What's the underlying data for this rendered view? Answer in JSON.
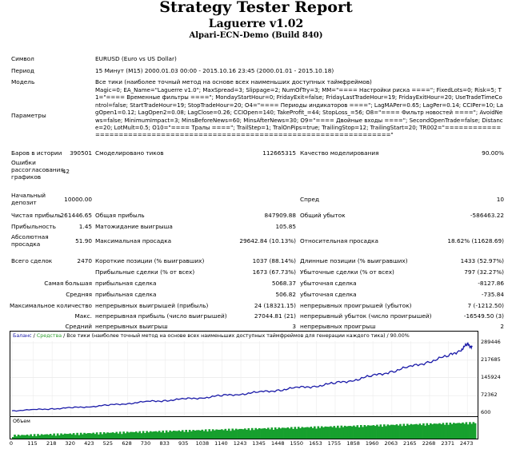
{
  "header": {
    "title": "Strategy Tester Report",
    "ea_name": "Laguerre v1.02",
    "server": "Alpari-ECN-Demo (Build 840)"
  },
  "info": {
    "symbol_label": "Символ",
    "symbol_value": "EURUSD (Euro vs US Dollar)",
    "period_label": "Период",
    "period_value": "15 Минут (M15) 2000.01.03 00:00 - 2015.10.16 23:45 (2000.01.01 - 2015.10.18)",
    "model_label": "Модель",
    "model_value": "Все тики (наиболее точный метод на основе всех наименьших доступных таймфреймов)",
    "params_label": "Параметры",
    "params_value": "Magic=0; EA_Name=\"Laguerre v1.0\"; MaxSpread=3; Slippage=2; NumOfTry=3; MM=\"==== Настройки риска ====\"; FixedLots=0; Risk=5; T1=\"==== Временные фильтры ====\"; MondayStartHour=0; FridayExit=false; FridayLastTradeHour=19; FridayExitHour=20; UseTradeTimeControl=false; StartTradeHour=19; StopTradeHour=20; O4=\"==== Периоды индикаторов ====\"; LagMAPer=0.65; LagPer=0.14; CCIPer=10; LagOpen1=0.12; LagOpen2=0.08; LagClose=0.26; CCIOpen=140; TakeProfit_=44; StopLoss_=56; O8=\"==== Фильтр новостей ====\"; AvoidNews=false; MinimumImpact=3; MinsBeforeNews=60; MinsAfterNews=30; O9=\"==== Двойные входы ====\"; SecondOpenTrade=false; Distance=20; LotMult=0.5; O10=\"==== Тралы ====\"; TrailStep=1; TralOnPips=true; TrailingStop=12; TrailingStart=20; TR002=\"===========================================================================\""
  },
  "stats": {
    "bars_label": "Баров в истории",
    "bars_value": "390501",
    "ticks_label": "Смоделировано тиков",
    "ticks_value": "112665315",
    "quality_label": "Качество моделирования",
    "quality_value": "90.00%",
    "errors_label": "Ошибки рассогласования графиков",
    "errors_value": "42",
    "deposit_label": "Начальный депозит",
    "deposit_value": "10000.00",
    "spread_label": "Спред",
    "spread_value": "10",
    "net_label": "Чистая прибыль",
    "net_value": "261446.65",
    "gross_profit_label": "Общая прибыль",
    "gross_profit_value": "847909.88",
    "gross_loss_label": "Общий убыток",
    "gross_loss_value": "-586463.22",
    "pf_label": "Прибыльность",
    "pf_value": "1.45",
    "exp_label": "Матожидание выигрыша",
    "exp_value": "105.85",
    "abs_dd_label": "Абсолютная просадка",
    "abs_dd_value": "51.90",
    "max_dd_label": "Максимальная просадка",
    "max_dd_value": "29642.84 (10.13%)",
    "rel_dd_label": "Относительная просадка",
    "rel_dd_value": "18.62% (11628.69)",
    "total_label": "Всего сделок",
    "total_value": "2470",
    "short_label": "Короткие позиции (% выигравших)",
    "short_value": "1037 (88.14%)",
    "long_label": "Длинные позиции (% выигравших)",
    "long_value": "1433 (52.97%)",
    "profit_trades_label": "Прибыльные сделки (% от всех)",
    "profit_trades_value": "1673 (67.73%)",
    "loss_trades_label": "Убыточные сделки (% от всех)",
    "loss_trades_value": "797 (32.27%)",
    "largest_label": "Самая большая",
    "largest_profit_label": "прибыльная сделка",
    "largest_profit_value": "5068.37",
    "largest_loss_label": "убыточная сделка",
    "largest_loss_value": "-8127.86",
    "average_label": "Средняя",
    "avg_profit_label": "прибыльная сделка",
    "avg_profit_value": "506.82",
    "avg_loss_label": "убыточная сделка",
    "avg_loss_value": "-735.84",
    "max_count_label": "Максимальное количество",
    "max_cons_wins_label": "непрерывных выигрышей (прибыль)",
    "max_cons_wins_value": "24 (18321.15)",
    "max_cons_losses_label": "непрерывных проигрышей (убыток)",
    "max_cons_losses_value": "7 (-1212.50)",
    "max_label": "Макс.",
    "max_cons_profit_label": "непрерывная прибыль (число выигрышей)",
    "max_cons_profit_value": "27044.81 (21)",
    "max_cons_loss_label": "непрерывный убыток (число проигрышей)",
    "max_cons_loss_value": "-16549.50 (3)",
    "avg_count_label": "Средний",
    "avg_cons_wins_label": "непрерывных выигрыш",
    "avg_cons_wins_value": "3",
    "avg_cons_losses_label": "непрерывных проигрыш",
    "avg_cons_losses_value": "2"
  },
  "chart_legend": {
    "balance": "Баланс",
    "sep": "/",
    "equity": "Средства",
    "rest": " / Все тики (наиболее точный метод на основе всех наименьших доступных таймфреймов для генерации каждого тика) / 90.00%"
  },
  "volume_label": "Объем",
  "colors": {
    "balance": "#1a1aa8",
    "equity": "#2f9f2f",
    "volume": "#17a02e"
  },
  "chart_data": {
    "type": "line",
    "x_ticks": [
      "0",
      "115",
      "218",
      "320",
      "423",
      "525",
      "628",
      "730",
      "833",
      "935",
      "1038",
      "1140",
      "1243",
      "1345",
      "1448",
      "1550",
      "1653",
      "1755",
      "1858",
      "1960",
      "2063",
      "2165",
      "2268",
      "2371",
      "2473"
    ],
    "y_ticks": [
      "289446",
      "217685",
      "145924",
      "72362",
      "600"
    ],
    "y_range": [
      600,
      289446
    ],
    "x_range": [
      0,
      2520
    ],
    "series": [
      {
        "values": [
          [
            0,
            10000
          ],
          [
            115,
            14000
          ],
          [
            218,
            18000
          ],
          [
            320,
            22000
          ],
          [
            423,
            27000
          ],
          [
            525,
            33000
          ],
          [
            628,
            40000
          ],
          [
            730,
            47000
          ],
          [
            833,
            52000
          ],
          [
            935,
            58000
          ],
          [
            1038,
            64000
          ],
          [
            1140,
            72000
          ],
          [
            1243,
            79000
          ],
          [
            1345,
            86000
          ],
          [
            1448,
            95000
          ],
          [
            1550,
            104000
          ],
          [
            1653,
            112000
          ],
          [
            1755,
            123000
          ],
          [
            1858,
            137000
          ],
          [
            1960,
            153000
          ],
          [
            2063,
            172000
          ],
          [
            2165,
            190000
          ],
          [
            2268,
            213000
          ],
          [
            2371,
            235000
          ],
          [
            2440,
            262000
          ],
          [
            2473,
            282000
          ],
          [
            2500,
            273000
          ]
        ]
      }
    ]
  }
}
